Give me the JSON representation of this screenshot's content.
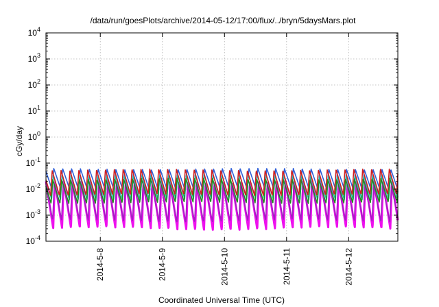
{
  "chart_data": {
    "type": "line",
    "title": "/data/run/goesPlots/archive/2014-05-12/17:00/flux/../bryn/5daysMars.plot",
    "xlabel": "Coordinated Universal Time (UTC)",
    "ylabel": "cGy/day",
    "yscale": "log",
    "ylim": [
      0.0001,
      10000
    ],
    "y_ticks": [
      {
        "base": "10",
        "exp": "-4",
        "value": 0.0001
      },
      {
        "base": "10",
        "exp": "-3",
        "value": 0.001
      },
      {
        "base": "10",
        "exp": "-2",
        "value": 0.01
      },
      {
        "base": "10",
        "exp": "-1",
        "value": 0.1
      },
      {
        "base": "10",
        "exp": "0",
        "value": 1
      },
      {
        "base": "10",
        "exp": "1",
        "value": 10
      },
      {
        "base": "10",
        "exp": "2",
        "value": 100
      },
      {
        "base": "10",
        "exp": "3",
        "value": 1000
      },
      {
        "base": "10",
        "exp": "4",
        "value": 10000
      }
    ],
    "xlim": [
      "2014-05-07 03:00",
      "2014-05-12 19:00"
    ],
    "x_ticks": [
      "2014-5-8",
      "2014-5-9",
      "2014-5-10",
      "2014-5-11",
      "2014-5-12"
    ],
    "grid": true,
    "legend": "none",
    "oscillation_periods_per_day": 7,
    "series": [
      {
        "color": "#2f5fd8",
        "max": 0.06,
        "min": 0.009
      },
      {
        "color": "#20b5b5",
        "max": 0.035,
        "min": 0.004
      },
      {
        "color": "#1f8f1f",
        "max": 0.025,
        "min": 0.003
      },
      {
        "color": "#d02020",
        "max": 0.055,
        "min": 0.006
      },
      {
        "color": "#ee10ee",
        "max": 0.02,
        "min": 0.0003
      },
      {
        "color": "#a020c0",
        "max": 0.015,
        "min": 0.0006
      }
    ]
  }
}
